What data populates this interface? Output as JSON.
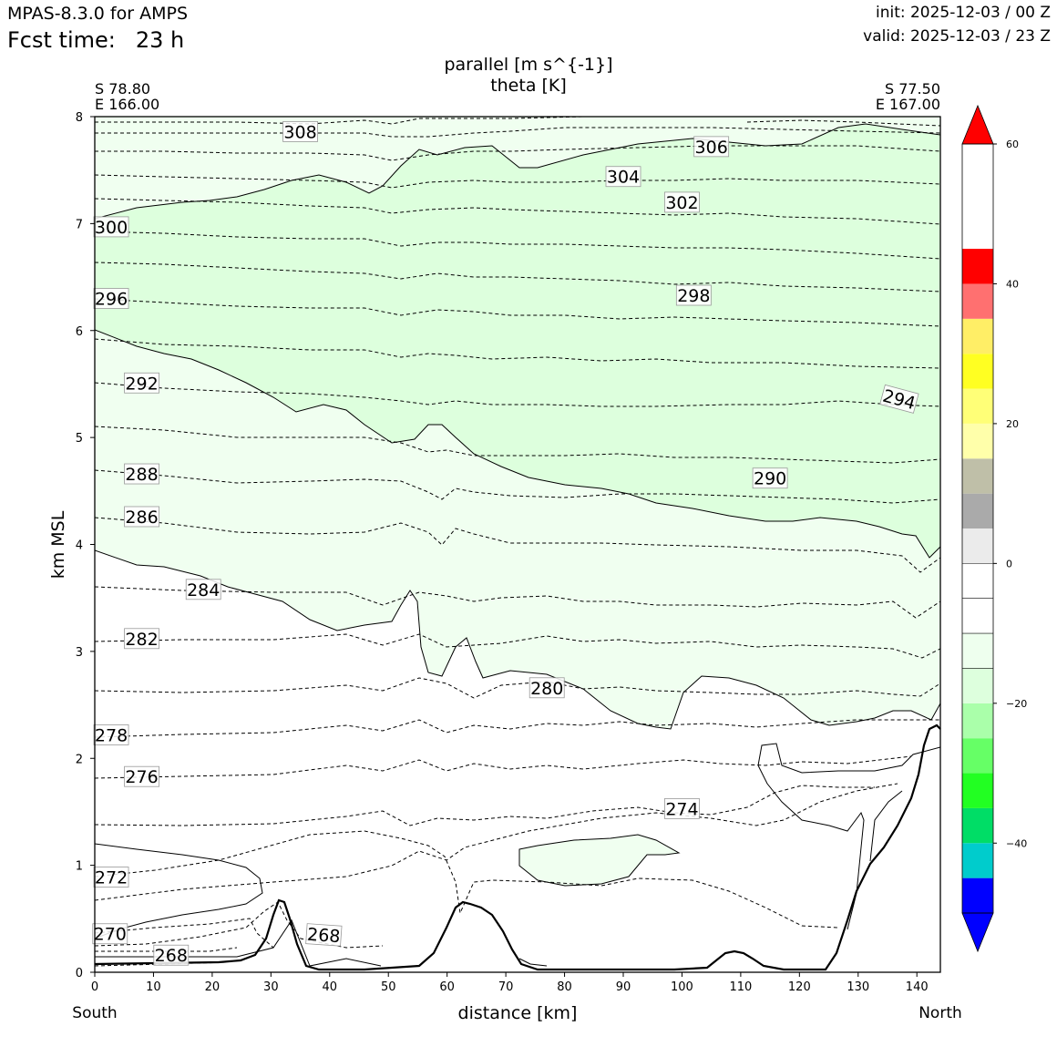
{
  "header": {
    "model": "MPAS-8.3.0 for AMPS",
    "fcst_label": "Fcst time:",
    "fcst_value": "23 h",
    "init": "init: 2025-12-03 / 00 Z",
    "valid": "valid: 2025-12-03 / 23 Z"
  },
  "corners": {
    "left_lat": "S 78.80",
    "left_lon": "E 166.00",
    "right_lat": "S 77.50",
    "right_lon": "E 167.00"
  },
  "chart_data": {
    "type": "contour-cross-section",
    "title": "parallel [m s^{-1}]",
    "subtitle": "theta [K]",
    "xlabel": "distance [km]",
    "ylabel": "km MSL",
    "xlim": [
      0,
      144
    ],
    "ylim": [
      0,
      8
    ],
    "x_ticks": [
      0,
      10,
      20,
      30,
      40,
      50,
      60,
      70,
      80,
      90,
      100,
      110,
      120,
      130,
      140
    ],
    "y_ticks": [
      0,
      1,
      2,
      3,
      4,
      5,
      6,
      7,
      8
    ],
    "x_start_label": "South",
    "x_end_label": "North",
    "theta_contours": [
      {
        "label": "268",
        "x": 13,
        "y": 0.16,
        "rot": 0
      },
      {
        "label": "268",
        "x": 39,
        "y": 0.35,
        "rot": 4
      },
      {
        "label": "270",
        "x": 2.6,
        "y": 0.36,
        "rot": 0
      },
      {
        "label": "272",
        "x": 2.8,
        "y": 0.89,
        "rot": 0
      },
      {
        "label": "274",
        "x": 100,
        "y": 1.53,
        "rot": 0
      },
      {
        "label": "276",
        "x": 8,
        "y": 1.83,
        "rot": 0
      },
      {
        "label": "278",
        "x": 2.8,
        "y": 2.22,
        "rot": 0
      },
      {
        "label": "280",
        "x": 77,
        "y": 2.66,
        "rot": 0
      },
      {
        "label": "282",
        "x": 8,
        "y": 3.12,
        "rot": 0
      },
      {
        "label": "284",
        "x": 18.5,
        "y": 3.58,
        "rot": 0
      },
      {
        "label": "286",
        "x": 8,
        "y": 4.26,
        "rot": 0
      },
      {
        "label": "288",
        "x": 8,
        "y": 4.66,
        "rot": 0
      },
      {
        "label": "290",
        "x": 115,
        "y": 4.62,
        "rot": 0
      },
      {
        "label": "292",
        "x": 8,
        "y": 5.51,
        "rot": 0
      },
      {
        "label": "294",
        "x": 137,
        "y": 5.36,
        "rot": 15
      },
      {
        "label": "296",
        "x": 2.8,
        "y": 6.3,
        "rot": 0
      },
      {
        "label": "298",
        "x": 102,
        "y": 6.33,
        "rot": 0
      },
      {
        "label": "300",
        "x": 2.8,
        "y": 6.97,
        "rot": 0
      },
      {
        "label": "302",
        "x": 100,
        "y": 7.2,
        "rot": 0
      },
      {
        "label": "304",
        "x": 90,
        "y": 7.44,
        "rot": 0
      },
      {
        "label": "306",
        "x": 105,
        "y": 7.72,
        "rot": 0
      },
      {
        "label": "308",
        "x": 35,
        "y": 7.86,
        "rot": 0
      }
    ],
    "colorbar": {
      "ticks": [
        "60",
        "40",
        "20",
        "0",
        "−20",
        "−40"
      ],
      "tick_values": [
        60,
        40,
        20,
        0,
        -20,
        -40
      ],
      "levels": [
        -50,
        -45,
        -40,
        -35,
        -30,
        -25,
        -20,
        -15,
        -10,
        -5,
        0,
        5,
        10,
        15,
        20,
        25,
        30,
        35,
        40,
        45,
        50,
        55,
        60
      ],
      "colors": [
        "#0000ff",
        "#00cccc",
        "#00dd66",
        "#22ff22",
        "#66ff66",
        "#aaffaa",
        "#ddffdd",
        "#eeffee",
        "#ffffff",
        "#ffffff",
        "#ebebeb",
        "#aaaaaa",
        "#bfbfa8",
        "#ffffaa",
        "#ffff77",
        "#ffff22",
        "#ffee66",
        "#ff7070",
        "#ff0000"
      ],
      "under_color": "#0000ff",
      "over_color": "#ff0000"
    },
    "fill_colors": {
      "light": "#f0fff0",
      "medium": "#ddffdd"
    }
  }
}
